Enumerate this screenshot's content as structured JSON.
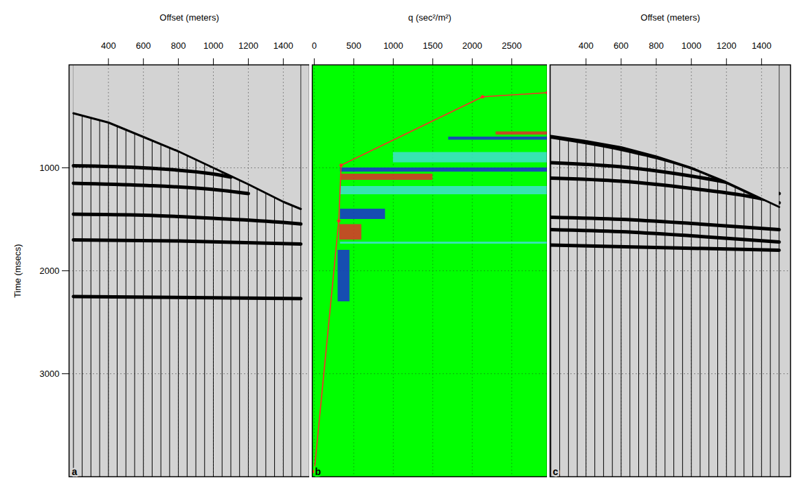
{
  "chart_data": [
    {
      "type": "wiggle",
      "panel_label": "a",
      "x_label": "Offset (meters)",
      "y_label": "Time (msecs)",
      "xlim": [
        175,
        1550
      ],
      "xticks": [
        400,
        600,
        800,
        1000,
        1200,
        1400
      ],
      "ylim": [
        0,
        4000
      ],
      "yticks": [
        1000,
        2000,
        3000
      ],
      "grid": true,
      "traces": [
        200,
        250,
        300,
        350,
        400,
        450,
        500,
        550,
        600,
        650,
        700,
        750,
        800,
        850,
        900,
        950,
        1000,
        1050,
        1100,
        1150,
        1200,
        1250,
        1300,
        1350,
        1400,
        1450,
        1500
      ],
      "mute": {
        "x": [
          200,
          400,
          600,
          800,
          1000,
          1200,
          1400,
          1500
        ],
        "t": [
          470,
          560,
          700,
          840,
          1000,
          1160,
          1330,
          1400
        ]
      },
      "events": [
        {
          "x": [
            200,
            600,
            1000,
            1100
          ],
          "t": [
            980,
            1000,
            1060,
            1090
          ]
        },
        {
          "x": [
            200,
            600,
            1000,
            1200
          ],
          "t": [
            1150,
            1170,
            1210,
            1250
          ]
        },
        {
          "x": [
            200,
            600,
            1000,
            1400,
            1500
          ],
          "t": [
            1450,
            1460,
            1490,
            1530,
            1545
          ]
        },
        {
          "x": [
            200,
            800,
            1500
          ],
          "t": [
            1700,
            1710,
            1740
          ]
        },
        {
          "x": [
            200,
            1500
          ],
          "t": [
            2250,
            2270
          ]
        }
      ]
    },
    {
      "type": "radon",
      "panel_label": "b",
      "x_label": "q (sec²/m²)",
      "xlim": [
        -25,
        2950
      ],
      "xticks": [
        0,
        500,
        1000,
        1500,
        2000,
        2500
      ],
      "ylim": [
        0,
        4000
      ],
      "yticks": [
        1000,
        2000,
        3000
      ],
      "grid": true,
      "tick_labels": "x",
      "pick": {
        "q": [
          2950,
          2130,
          340,
          310,
          0
        ],
        "t": [
          270,
          310,
          975,
          1515,
          3950
        ],
        "color": "#ff2a2a",
        "marker": "dot"
      },
      "energy": [
        {
          "q": [
            2300,
            2950
          ],
          "t": [
            650,
            680
          ],
          "color": "#e0302a"
        },
        {
          "q": [
            1700,
            2950
          ],
          "t": [
            700,
            730
          ],
          "color": "#1a2fd0"
        },
        {
          "q": [
            1000,
            2950
          ],
          "t": [
            850,
            950
          ],
          "color": "#40e0d0"
        },
        {
          "q": [
            330,
            2950
          ],
          "t": [
            1000,
            1040
          ],
          "color": "#1a2fd0"
        },
        {
          "q": [
            330,
            1500
          ],
          "t": [
            1060,
            1120
          ],
          "color": "#e0302a"
        },
        {
          "q": [
            330,
            2950
          ],
          "t": [
            1180,
            1260
          ],
          "color": "#40e0d0"
        },
        {
          "q": [
            330,
            900
          ],
          "t": [
            1400,
            1500
          ],
          "color": "#1a2fd0"
        },
        {
          "q": [
            320,
            600
          ],
          "t": [
            1550,
            1700
          ],
          "color": "#e0302a"
        },
        {
          "q": [
            330,
            2950
          ],
          "t": [
            1720,
            1740
          ],
          "color": "#40e0d0"
        },
        {
          "q": [
            300,
            450
          ],
          "t": [
            1800,
            2300
          ],
          "color": "#1a2fd0"
        }
      ]
    },
    {
      "type": "wiggle",
      "panel_label": "c",
      "x_label": "Offset (meters)",
      "xlim": [
        195,
        1565
      ],
      "xticks": [
        400,
        600,
        800,
        1000,
        1200,
        1400
      ],
      "ylim": [
        0,
        4000
      ],
      "yticks": [
        1000,
        2000,
        3000
      ],
      "grid": true,
      "tick_labels": "x",
      "traces": [
        200,
        250,
        300,
        350,
        400,
        450,
        500,
        550,
        600,
        650,
        700,
        750,
        800,
        850,
        900,
        950,
        1000,
        1050,
        1100,
        1150,
        1200,
        1250,
        1300,
        1350,
        1400,
        1450,
        1500
      ],
      "mute": {
        "x": [
          200,
          400,
          600,
          800,
          1000,
          1200,
          1400,
          1500
        ],
        "t": [
          690,
          740,
          800,
          890,
          1000,
          1140,
          1300,
          1380
        ]
      },
      "events": [
        {
          "x": [
            200,
            600,
            1000,
            1400
          ],
          "t": [
            700,
            820,
            1000,
            1300
          ]
        },
        {
          "x": [
            200,
            600,
            1000,
            1400,
            1500
          ],
          "t": [
            950,
            990,
            1080,
            1210,
            1250
          ]
        },
        {
          "x": [
            200,
            600,
            1000,
            1400,
            1500
          ],
          "t": [
            1100,
            1130,
            1200,
            1300,
            1340
          ]
        },
        {
          "x": [
            200,
            600,
            1000,
            1500
          ],
          "t": [
            1480,
            1500,
            1540,
            1600
          ]
        },
        {
          "x": [
            200,
            600,
            1000,
            1500
          ],
          "t": [
            1600,
            1620,
            1660,
            1720
          ]
        },
        {
          "x": [
            200,
            1500
          ],
          "t": [
            1750,
            1800
          ]
        }
      ]
    }
  ]
}
